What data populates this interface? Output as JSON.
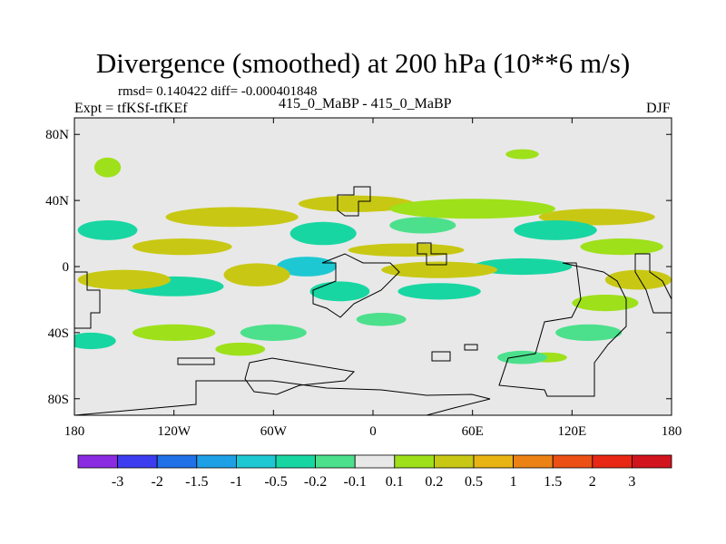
{
  "chart_data": {
    "type": "heatmap",
    "title": "Divergence (smoothed) at 200 hPa (10**6 m/s)",
    "stats_line": "rmsd= 0.140422 diff= -0.000401848",
    "experiment": "Expt = tfKSf-tfKEf",
    "cases": "415_0_MaBP - 415_0_MaBP",
    "season": "DJF",
    "xlim": [
      -180,
      180
    ],
    "ylim": [
      -90,
      90
    ],
    "x_ticks": [
      {
        "value": -180,
        "label": "180"
      },
      {
        "value": -120,
        "label": "120W"
      },
      {
        "value": -60,
        "label": "60W"
      },
      {
        "value": 0,
        "label": "0"
      },
      {
        "value": 60,
        "label": "60E"
      },
      {
        "value": 120,
        "label": "120E"
      },
      {
        "value": 180,
        "label": "180"
      }
    ],
    "y_ticks": [
      {
        "value": 80,
        "label": "80N"
      },
      {
        "value": 40,
        "label": "40N"
      },
      {
        "value": 0,
        "label": "0"
      },
      {
        "value": -40,
        "label": "40S"
      },
      {
        "value": -80,
        "label": "80S"
      }
    ],
    "colorbar": {
      "levels": [
        "-3",
        "-2",
        "-1.5",
        "-1",
        "-0.5",
        "-0.2",
        "-0.1",
        "0.1",
        "0.2",
        "0.5",
        "1",
        "1.5",
        "2",
        "3"
      ],
      "colors": [
        "#8a2be2",
        "#3c3cf0",
        "#2070e8",
        "#1ea0e6",
        "#1ec8d2",
        "#18d6a2",
        "#4ce08c",
        "#e8e8e8",
        "#9ee01a",
        "#c8c814",
        "#e8b414",
        "#ec8214",
        "#ec5014",
        "#e82814",
        "#d2141e"
      ]
    },
    "field_blobs": [
      {
        "name": "nh-midlat-band-1",
        "class": 9,
        "lon": -85,
        "lat": 30,
        "rlon": 40,
        "rlat": 6
      },
      {
        "name": "nh-midlat-band-2",
        "class": 9,
        "lon": -10,
        "lat": 38,
        "rlon": 35,
        "rlat": 5
      },
      {
        "name": "nh-midlat-band-3",
        "class": 8,
        "lon": 60,
        "lat": 35,
        "rlon": 50,
        "rlat": 6
      },
      {
        "name": "nh-midlat-band-4",
        "class": 9,
        "lon": 135,
        "lat": 30,
        "rlon": 35,
        "rlat": 5
      },
      {
        "name": "nh-midlat-neg-1",
        "class": 5,
        "lon": -30,
        "lat": 20,
        "rlon": 20,
        "rlat": 7
      },
      {
        "name": "nh-midlat-neg-2",
        "class": 5,
        "lon": -160,
        "lat": 22,
        "rlon": 18,
        "rlat": 6
      },
      {
        "name": "nh-midlat-neg-3",
        "class": 5,
        "lon": 110,
        "lat": 22,
        "rlon": 25,
        "rlat": 6
      },
      {
        "name": "nh-midlat-neg-4",
        "class": 6,
        "lon": 30,
        "lat": 25,
        "rlon": 20,
        "rlat": 5
      },
      {
        "name": "nh-subtrop-pos-1",
        "class": 9,
        "lon": -115,
        "lat": 12,
        "rlon": 30,
        "rlat": 5
      },
      {
        "name": "nh-subtrop-pos-2",
        "class": 9,
        "lon": 20,
        "lat": 10,
        "rlon": 35,
        "rlat": 4
      },
      {
        "name": "nh-subtrop-pos-3",
        "class": 8,
        "lon": 150,
        "lat": 12,
        "rlon": 25,
        "rlat": 5
      },
      {
        "name": "eq-neg-1",
        "class": 4,
        "lon": -40,
        "lat": 0,
        "rlon": 18,
        "rlat": 6
      },
      {
        "name": "eq-neg-2",
        "class": 5,
        "lon": -120,
        "lat": -12,
        "rlon": 30,
        "rlat": 6
      },
      {
        "name": "eq-neg-3",
        "class": 5,
        "lon": 90,
        "lat": 0,
        "rlon": 30,
        "rlat": 5
      },
      {
        "name": "eq-pos-1",
        "class": 9,
        "lon": -150,
        "lat": -8,
        "rlon": 28,
        "rlat": 6
      },
      {
        "name": "eq-pos-2",
        "class": 9,
        "lon": -70,
        "lat": -5,
        "rlon": 20,
        "rlat": 7
      },
      {
        "name": "eq-pos-3",
        "class": 9,
        "lon": 40,
        "lat": -2,
        "rlon": 35,
        "rlat": 5
      },
      {
        "name": "eq-pos-4",
        "class": 9,
        "lon": 160,
        "lat": -8,
        "rlon": 20,
        "rlat": 6
      },
      {
        "name": "sh-band-neg-1",
        "class": 5,
        "lon": -20,
        "lat": -15,
        "rlon": 18,
        "rlat": 6
      },
      {
        "name": "sh-band-neg-2",
        "class": 5,
        "lon": 40,
        "lat": -15,
        "rlon": 25,
        "rlat": 5
      },
      {
        "name": "sh-band-pos-1",
        "class": 8,
        "lon": 140,
        "lat": -22,
        "rlon": 20,
        "rlat": 5
      },
      {
        "name": "sh-midlat-pos-1",
        "class": 8,
        "lon": -120,
        "lat": -40,
        "rlon": 25,
        "rlat": 5
      },
      {
        "name": "sh-midlat-neg-1",
        "class": 6,
        "lon": -60,
        "lat": -40,
        "rlon": 20,
        "rlat": 5
      },
      {
        "name": "sh-midlat-neg-2",
        "class": 5,
        "lon": -170,
        "lat": -45,
        "rlon": 15,
        "rlat": 5
      },
      {
        "name": "sh-midlat-neg-3",
        "class": 6,
        "lon": 130,
        "lat": -40,
        "rlon": 20,
        "rlat": 5
      },
      {
        "name": "sh-midlat-neg-4",
        "class": 6,
        "lon": 5,
        "lat": -32,
        "rlon": 15,
        "rlat": 4
      },
      {
        "name": "sh-highlat-pos-1",
        "class": 8,
        "lon": -80,
        "lat": -50,
        "rlon": 15,
        "rlat": 4
      },
      {
        "name": "sh-highlat-pos-2",
        "class": 8,
        "lon": 105,
        "lat": -55,
        "rlon": 12,
        "rlat": 3
      },
      {
        "name": "sh-highlat-neg-1",
        "class": 6,
        "lon": 90,
        "lat": -55,
        "rlon": 15,
        "rlat": 4
      },
      {
        "name": "arctic-pos-1",
        "class": 8,
        "lon": -160,
        "lat": 60,
        "rlon": 8,
        "rlat": 6
      },
      {
        "name": "arctic-pos-2",
        "class": 8,
        "lon": 90,
        "lat": 68,
        "rlon": 10,
        "rlat": 3
      }
    ]
  }
}
